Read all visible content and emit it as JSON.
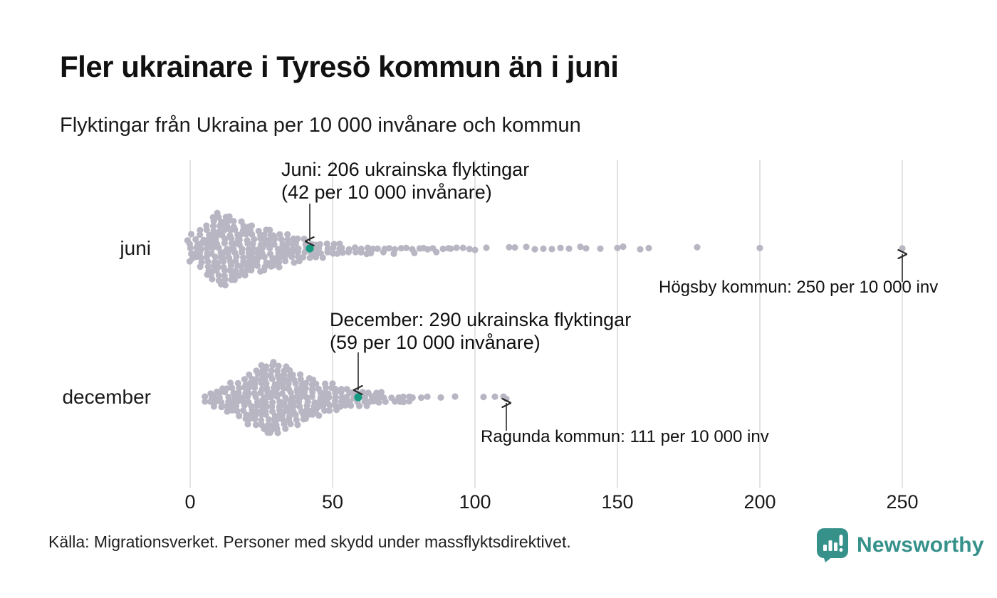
{
  "header": {
    "title": "Fler ukrainare i Tyresö kommun än i juni",
    "subtitle": "Flyktingar från Ukraina per 10 000 invånare och kommun"
  },
  "chart_data": {
    "type": "scatter",
    "subtype": "beeswarm",
    "title": "Fler ukrainare i Tyresö kommun än i juni",
    "xlabel": "Flyktingar från Ukraina per 10 000 invånare",
    "x_axis": {
      "min": 0,
      "max": 260,
      "ticks": [
        0,
        50,
        100,
        150,
        200,
        250
      ],
      "tick_labels": [
        "0",
        "50",
        "100",
        "150",
        "200",
        "250"
      ],
      "grid": true
    },
    "rows": [
      {
        "id": "juni",
        "label": "juni",
        "highlight": {
          "municipality": "Tyresö kommun",
          "value": 42,
          "refugees": 206
        },
        "columns": [
          {
            "v": 0,
            "n": 7
          },
          {
            "v": 2,
            "n": 5
          },
          {
            "v": 4,
            "n": 9
          },
          {
            "v": 6,
            "n": 12
          },
          {
            "v": 8,
            "n": 15
          },
          {
            "v": 10,
            "n": 17
          },
          {
            "v": 12,
            "n": 16
          },
          {
            "v": 14,
            "n": 15
          },
          {
            "v": 16,
            "n": 14
          },
          {
            "v": 18,
            "n": 13
          },
          {
            "v": 20,
            "n": 12
          },
          {
            "v": 22,
            "n": 11
          },
          {
            "v": 24,
            "n": 10
          },
          {
            "v": 26,
            "n": 10
          },
          {
            "v": 28,
            "n": 9
          },
          {
            "v": 30,
            "n": 8
          },
          {
            "v": 32,
            "n": 8
          },
          {
            "v": 34,
            "n": 7
          },
          {
            "v": 36,
            "n": 6
          },
          {
            "v": 38,
            "n": 6
          },
          {
            "v": 40,
            "n": 5
          },
          {
            "v": 42,
            "n": 4
          },
          {
            "v": 44,
            "n": 4
          },
          {
            "v": 46,
            "n": 4
          },
          {
            "v": 48,
            "n": 3
          },
          {
            "v": 50,
            "n": 3
          },
          {
            "v": 52,
            "n": 3
          },
          {
            "v": 54,
            "n": 2
          },
          {
            "v": 56,
            "n": 2
          },
          {
            "v": 58,
            "n": 2
          },
          {
            "v": 60,
            "n": 2
          },
          {
            "v": 62,
            "n": 2
          },
          {
            "v": 64,
            "n": 2
          },
          {
            "v": 66,
            "n": 1
          },
          {
            "v": 68,
            "n": 2
          },
          {
            "v": 70,
            "n": 1
          },
          {
            "v": 72,
            "n": 2
          },
          {
            "v": 74,
            "n": 1
          },
          {
            "v": 76,
            "n": 1
          },
          {
            "v": 78,
            "n": 2
          },
          {
            "v": 80,
            "n": 1
          },
          {
            "v": 82,
            "n": 1
          },
          {
            "v": 84,
            "n": 1
          },
          {
            "v": 86,
            "n": 2
          },
          {
            "v": 88,
            "n": 1
          },
          {
            "v": 90,
            "n": 1
          },
          {
            "v": 92,
            "n": 1
          },
          {
            "v": 94,
            "n": 1
          },
          {
            "v": 96,
            "n": 1
          },
          {
            "v": 98,
            "n": 1
          }
        ],
        "outliers": [
          100,
          104,
          112,
          114,
          118,
          121,
          124,
          127,
          130,
          133,
          137,
          139,
          144,
          150,
          152,
          158,
          161,
          178,
          200,
          250
        ]
      },
      {
        "id": "december",
        "label": "december",
        "highlight": {
          "municipality": "Tyresö kommun",
          "value": 59,
          "refugees": 290
        },
        "columns": [
          {
            "v": 5,
            "n": 2
          },
          {
            "v": 7,
            "n": 3
          },
          {
            "v": 9,
            "n": 4
          },
          {
            "v": 11,
            "n": 5
          },
          {
            "v": 13,
            "n": 6
          },
          {
            "v": 15,
            "n": 7
          },
          {
            "v": 17,
            "n": 8
          },
          {
            "v": 19,
            "n": 10
          },
          {
            "v": 21,
            "n": 12
          },
          {
            "v": 23,
            "n": 13
          },
          {
            "v": 25,
            "n": 15
          },
          {
            "v": 27,
            "n": 16
          },
          {
            "v": 29,
            "n": 17
          },
          {
            "v": 31,
            "n": 16
          },
          {
            "v": 33,
            "n": 15
          },
          {
            "v": 35,
            "n": 13
          },
          {
            "v": 37,
            "n": 12
          },
          {
            "v": 39,
            "n": 11
          },
          {
            "v": 41,
            "n": 10
          },
          {
            "v": 43,
            "n": 9
          },
          {
            "v": 45,
            "n": 8
          },
          {
            "v": 47,
            "n": 7
          },
          {
            "v": 49,
            "n": 7
          },
          {
            "v": 51,
            "n": 6
          },
          {
            "v": 53,
            "n": 5
          },
          {
            "v": 55,
            "n": 5
          },
          {
            "v": 57,
            "n": 4
          },
          {
            "v": 59,
            "n": 4
          },
          {
            "v": 61,
            "n": 4
          },
          {
            "v": 63,
            "n": 3
          },
          {
            "v": 65,
            "n": 3
          },
          {
            "v": 67,
            "n": 3
          },
          {
            "v": 69,
            "n": 2
          },
          {
            "v": 71,
            "n": 2
          },
          {
            "v": 73,
            "n": 2
          },
          {
            "v": 75,
            "n": 2
          },
          {
            "v": 77,
            "n": 2
          },
          {
            "v": 79,
            "n": 1
          },
          {
            "v": 81,
            "n": 1
          },
          {
            "v": 83,
            "n": 1
          }
        ],
        "outliers": [
          88,
          93,
          103,
          107,
          110,
          111
        ]
      }
    ],
    "annotations": [
      {
        "id": "juni-highlight",
        "line1": "Juni: 206 ukrainska flyktingar",
        "line2": "(42 per 10 000 invånare)",
        "row": "juni",
        "value": 42,
        "arrow": "down"
      },
      {
        "id": "december-highlight",
        "line1": "December: 290 ukrainska flyktingar",
        "line2": "(59 per 10 000 invånare)",
        "row": "december",
        "value": 59,
        "arrow": "down"
      },
      {
        "id": "hogsby",
        "text": "Högsby kommun: 250 per 10 000 inv",
        "row": "juni",
        "value": 250,
        "arrow": "up"
      },
      {
        "id": "ragunda",
        "text": "Ragunda kommun: 111 per 10 000 inv",
        "row": "december",
        "value": 111,
        "arrow": "up"
      }
    ],
    "colors": {
      "dot": "#b9b6c4",
      "highlight": "#169b82",
      "grid": "#dcdcdc",
      "arrow": "#2a2a2a"
    }
  },
  "footer": {
    "source": "Källa: Migrationsverket. Personer med skydd under massflyktsdirektivet.",
    "brand": "Newsworthy",
    "brand_color": "#35918a"
  }
}
